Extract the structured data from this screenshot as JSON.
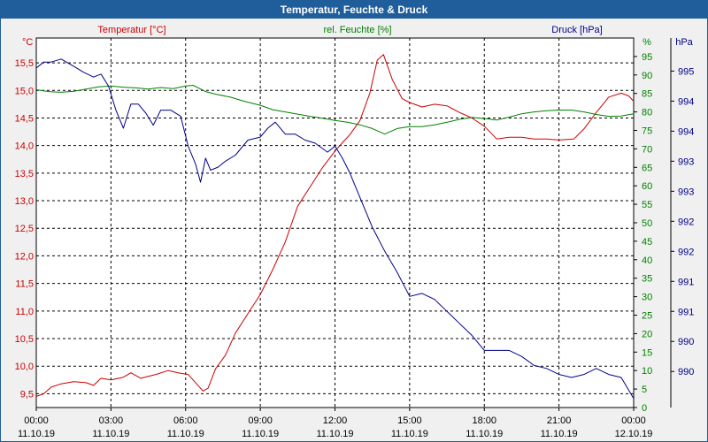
{
  "window": {
    "title": "Temperatur, Feuchte & Druck"
  },
  "chart_data": {
    "type": "line",
    "title": "Temperatur, Feuchte & Druck",
    "grid": true,
    "x_ticks": [
      {
        "hours": 0,
        "time": "00:00",
        "date": "11.10.19"
      },
      {
        "hours": 3,
        "time": "03:00",
        "date": "11.10.19"
      },
      {
        "hours": 6,
        "time": "06:00",
        "date": "11.10.19"
      },
      {
        "hours": 9,
        "time": "09:00",
        "date": "11.10.19"
      },
      {
        "hours": 12,
        "time": "12:00",
        "date": "11.10.19"
      },
      {
        "hours": 15,
        "time": "15:00",
        "date": "11.10.19"
      },
      {
        "hours": 18,
        "time": "18:00",
        "date": "11.10.19"
      },
      {
        "hours": 21,
        "time": "21:00",
        "date": "11.10.19"
      },
      {
        "hours": 24,
        "time": "00:00",
        "date": "12.10.19"
      }
    ],
    "axes": {
      "temperature": {
        "label": "Temperatur [°C]",
        "unit": "°C",
        "color": "#cc0000",
        "range": [
          9.25,
          15.95
        ],
        "ticks": [
          "9,5",
          "10,0",
          "10,5",
          "11,0",
          "11,5",
          "12,0",
          "12,5",
          "13,0",
          "13,5",
          "14,0",
          "14,5",
          "15,0",
          "15,5"
        ]
      },
      "humidity": {
        "label": "rel. Feuchte [%]",
        "unit": "%",
        "color": "#008000",
        "range": [
          0,
          100
        ],
        "ticks": [
          "0",
          "5",
          "10",
          "15",
          "20",
          "25",
          "30",
          "35",
          "40",
          "45",
          "50",
          "55",
          "60",
          "65",
          "70",
          "75",
          "80",
          "85",
          "90",
          "95"
        ]
      },
      "pressure": {
        "label": "Druck [hPa]",
        "unit": "hPa",
        "color": "#00008b",
        "range": [
          989.4,
          995.55
        ],
        "ticks": [
          {
            "v": 990.0,
            "t": "990"
          },
          {
            "v": 990.5,
            "t": "990"
          },
          {
            "v": 991.0,
            "t": "991"
          },
          {
            "v": 991.5,
            "t": "991"
          },
          {
            "v": 992.0,
            "t": "992"
          },
          {
            "v": 992.5,
            "t": "992"
          },
          {
            "v": 993.0,
            "t": "993"
          },
          {
            "v": 993.5,
            "t": "993"
          },
          {
            "v": 994.0,
            "t": "994"
          },
          {
            "v": 994.5,
            "t": "994"
          },
          {
            "v": 995.0,
            "t": "995"
          }
        ]
      }
    },
    "series": [
      {
        "name": "Temperatur [°C]",
        "axis": "temperature",
        "color": "#cc0000",
        "points": [
          [
            0,
            9.45
          ],
          [
            0.3,
            9.5
          ],
          [
            0.6,
            9.62
          ],
          [
            1,
            9.68
          ],
          [
            1.5,
            9.72
          ],
          [
            2,
            9.7
          ],
          [
            2.3,
            9.65
          ],
          [
            2.6,
            9.78
          ],
          [
            3,
            9.75
          ],
          [
            3.5,
            9.8
          ],
          [
            3.8,
            9.88
          ],
          [
            4.2,
            9.78
          ],
          [
            4.8,
            9.85
          ],
          [
            5.3,
            9.92
          ],
          [
            5.7,
            9.88
          ],
          [
            6.1,
            9.85
          ],
          [
            6.4,
            9.7
          ],
          [
            6.7,
            9.55
          ],
          [
            6.9,
            9.6
          ],
          [
            7.2,
            9.95
          ],
          [
            7.6,
            10.2
          ],
          [
            8,
            10.6
          ],
          [
            8.5,
            10.95
          ],
          [
            9,
            11.3
          ],
          [
            9.5,
            11.75
          ],
          [
            10,
            12.25
          ],
          [
            10.5,
            12.9
          ],
          [
            11,
            13.25
          ],
          [
            11.5,
            13.6
          ],
          [
            12,
            13.9
          ],
          [
            12.3,
            14.05
          ],
          [
            12.6,
            14.2
          ],
          [
            13,
            14.45
          ],
          [
            13.4,
            14.95
          ],
          [
            13.7,
            15.55
          ],
          [
            13.95,
            15.65
          ],
          [
            14.3,
            15.2
          ],
          [
            14.7,
            14.85
          ],
          [
            15,
            14.78
          ],
          [
            15.5,
            14.7
          ],
          [
            16,
            14.75
          ],
          [
            16.5,
            14.72
          ],
          [
            17,
            14.6
          ],
          [
            17.5,
            14.5
          ],
          [
            18,
            14.35
          ],
          [
            18.5,
            14.12
          ],
          [
            19,
            14.15
          ],
          [
            19.5,
            14.15
          ],
          [
            20,
            14.12
          ],
          [
            20.5,
            14.12
          ],
          [
            21,
            14.1
          ],
          [
            21.6,
            14.12
          ],
          [
            22,
            14.3
          ],
          [
            22.5,
            14.6
          ],
          [
            23,
            14.88
          ],
          [
            23.5,
            14.95
          ],
          [
            23.8,
            14.9
          ],
          [
            24,
            14.8
          ]
        ]
      },
      {
        "name": "rel. Feuchte [%]",
        "axis": "humidity",
        "color": "#008000",
        "points": [
          [
            0,
            86
          ],
          [
            0.5,
            85.5
          ],
          [
            1,
            85.3
          ],
          [
            1.5,
            85.6
          ],
          [
            2,
            86.2
          ],
          [
            2.5,
            86.8
          ],
          [
            3,
            87
          ],
          [
            3.5,
            86.7
          ],
          [
            4,
            86.5
          ],
          [
            4.5,
            86.2
          ],
          [
            5,
            86.6
          ],
          [
            5.5,
            86.3
          ],
          [
            6,
            87
          ],
          [
            6.3,
            87.2
          ],
          [
            6.8,
            85.5
          ],
          [
            7.2,
            84.8
          ],
          [
            7.8,
            84
          ],
          [
            8.3,
            83
          ],
          [
            9,
            81.8
          ],
          [
            9.5,
            80.6
          ],
          [
            10,
            80
          ],
          [
            10.5,
            79.4
          ],
          [
            11,
            78.8
          ],
          [
            11.5,
            78.3
          ],
          [
            12,
            77.7
          ],
          [
            12.5,
            77.2
          ],
          [
            13,
            76.5
          ],
          [
            13.5,
            75.5
          ],
          [
            14,
            74
          ],
          [
            14.5,
            75.5
          ],
          [
            15,
            76
          ],
          [
            15.5,
            76
          ],
          [
            16,
            76.5
          ],
          [
            16.5,
            77.2
          ],
          [
            17,
            78
          ],
          [
            17.5,
            78.5
          ],
          [
            18,
            78.2
          ],
          [
            18.5,
            77.8
          ],
          [
            19,
            78.6
          ],
          [
            19.5,
            79.5
          ],
          [
            20,
            80
          ],
          [
            20.5,
            80.3
          ],
          [
            21,
            80.5
          ],
          [
            21.5,
            80.5
          ],
          [
            22,
            80
          ],
          [
            22.5,
            79.3
          ],
          [
            23,
            78.8
          ],
          [
            23.5,
            78.9
          ],
          [
            24,
            79.5
          ]
        ]
      },
      {
        "name": "Druck [hPa]",
        "axis": "pressure",
        "color": "#00008b",
        "points": [
          [
            0,
            995.05
          ],
          [
            0.3,
            995.15
          ],
          [
            0.6,
            995.15
          ],
          [
            1,
            995.2
          ],
          [
            1.5,
            995.08
          ],
          [
            1.9,
            994.98
          ],
          [
            2.3,
            994.9
          ],
          [
            2.6,
            994.95
          ],
          [
            2.9,
            994.75
          ],
          [
            3.2,
            994.35
          ],
          [
            3.5,
            994.05
          ],
          [
            3.8,
            994.45
          ],
          [
            4.1,
            994.45
          ],
          [
            4.4,
            994.3
          ],
          [
            4.7,
            994.1
          ],
          [
            5,
            994.35
          ],
          [
            5.4,
            994.35
          ],
          [
            5.8,
            994.25
          ],
          [
            6.1,
            993.75
          ],
          [
            6.4,
            993.45
          ],
          [
            6.6,
            993.15
          ],
          [
            6.8,
            993.55
          ],
          [
            7,
            993.35
          ],
          [
            7.3,
            993.4
          ],
          [
            7.6,
            993.5
          ],
          [
            8,
            993.6
          ],
          [
            8.5,
            993.85
          ],
          [
            9,
            993.9
          ],
          [
            9.3,
            994.05
          ],
          [
            9.6,
            994.15
          ],
          [
            10,
            993.95
          ],
          [
            10.4,
            993.95
          ],
          [
            10.8,
            993.85
          ],
          [
            11.2,
            993.8
          ],
          [
            11.7,
            993.65
          ],
          [
            12,
            993.75
          ],
          [
            12.3,
            993.55
          ],
          [
            12.6,
            993.3
          ],
          [
            13,
            992.9
          ],
          [
            13.5,
            992.4
          ],
          [
            14,
            992.0
          ],
          [
            14.5,
            991.65
          ],
          [
            15,
            991.25
          ],
          [
            15.5,
            991.3
          ],
          [
            16,
            991.2
          ],
          [
            16.5,
            991.0
          ],
          [
            17,
            990.8
          ],
          [
            17.5,
            990.6
          ],
          [
            18,
            990.35
          ],
          [
            18.5,
            990.35
          ],
          [
            19,
            990.35
          ],
          [
            19.5,
            990.25
          ],
          [
            20,
            990.1
          ],
          [
            20.5,
            990.05
          ],
          [
            21,
            989.95
          ],
          [
            21.5,
            989.9
          ],
          [
            22,
            989.95
          ],
          [
            22.5,
            990.05
          ],
          [
            23,
            989.95
          ],
          [
            23.5,
            989.9
          ],
          [
            24,
            989.55
          ]
        ]
      }
    ]
  }
}
